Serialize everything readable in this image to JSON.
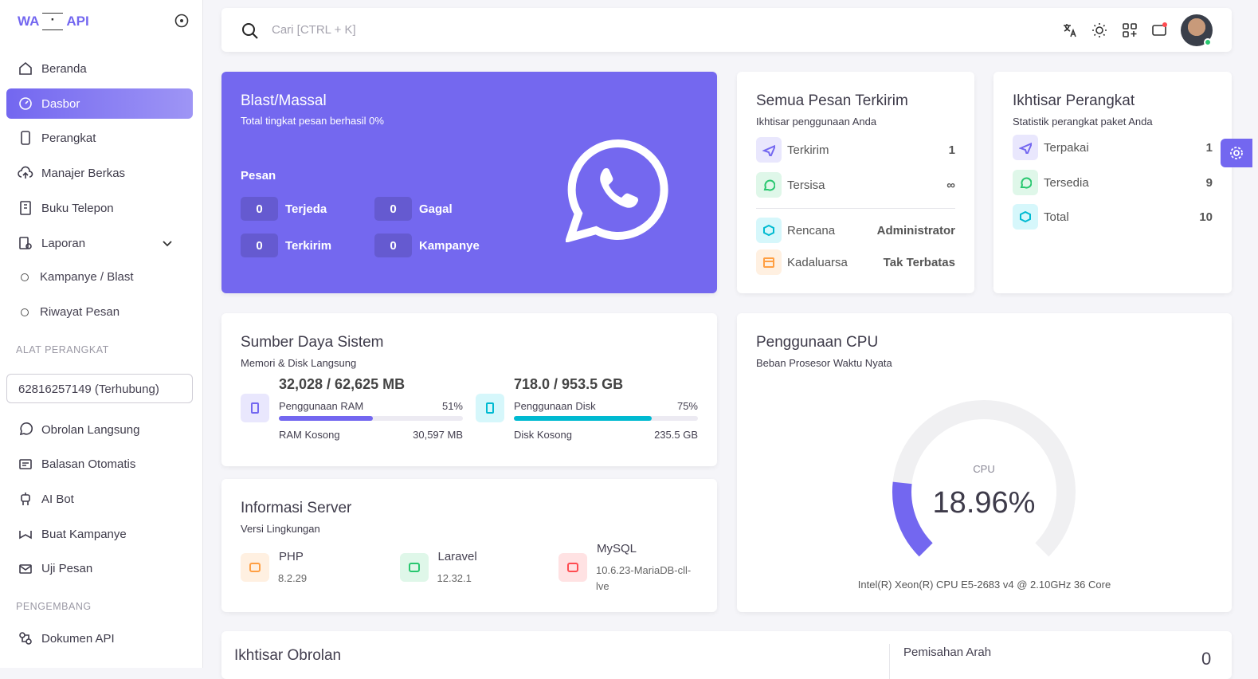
{
  "sidebar": {
    "logo_left": "WA",
    "logo_right": "API",
    "menu": [
      "Beranda",
      "Dasbor",
      "Perangkat",
      "Manajer Berkas",
      "Buku Telepon",
      "Laporan"
    ],
    "sub_menu": [
      "Kampanye / Blast",
      "Riwayat Pesan"
    ],
    "section_tools": "ALAT PERANGKAT",
    "device": "62816257149 (Terhubung)",
    "tools": [
      "Obrolan Langsung",
      "Balasan Otomatis",
      "AI Bot",
      "Buat Kampanye",
      "Uji Pesan"
    ],
    "section_dev": "PENGEMBANG",
    "dev": [
      "Dokumen API"
    ]
  },
  "topbar": {
    "search_placeholder": "Cari [CTRL + K]"
  },
  "blast": {
    "title": "Blast/Massal",
    "subtitle": "Total tingkat pesan berhasil 0%",
    "heading": "Pesan",
    "stats": [
      {
        "value": "0",
        "label": "Terjeda"
      },
      {
        "value": "0",
        "label": "Gagal"
      },
      {
        "value": "0",
        "label": "Terkirim"
      },
      {
        "value": "0",
        "label": "Kampanye"
      }
    ]
  },
  "messages": {
    "title": "Semua Pesan Terkirim",
    "subtitle": "Ikhtisar penggunaan Anda",
    "rows": [
      {
        "label": "Terkirim",
        "value": "1"
      },
      {
        "label": "Tersisa",
        "value": "∞"
      },
      {
        "label": "Rencana",
        "value": "Administrator"
      },
      {
        "label": "Kadaluarsa",
        "value": "Tak Terbatas"
      }
    ]
  },
  "devices": {
    "title": "Ikhtisar Perangkat",
    "subtitle": "Statistik perangkat paket Anda",
    "rows": [
      {
        "label": "Terpakai",
        "value": "1"
      },
      {
        "label": "Tersedia",
        "value": "9"
      },
      {
        "label": "Total",
        "value": "10"
      }
    ]
  },
  "resources": {
    "title": "Sumber Daya Sistem",
    "subtitle": "Memori & Disk Langsung",
    "ram": {
      "total": "32,028 / 62,625 MB",
      "label": "Penggunaan RAM",
      "percent": {
        "value": 51,
        "label": "51%"
      },
      "free_label": "RAM Kosong",
      "free": "30,597 MB"
    },
    "disk": {
      "total": "718.0 / 953.5 GB",
      "label": "Penggunaan Disk",
      "percent": {
        "value": 75,
        "label": "75%"
      },
      "free_label": "Disk Kosong",
      "free": "235.5 GB"
    }
  },
  "server": {
    "title": "Informasi Server",
    "subtitle": "Versi Lingkungan",
    "items": [
      {
        "name": "PHP",
        "version": "8.2.29"
      },
      {
        "name": "Laravel",
        "version": "12.32.1"
      },
      {
        "name": "MySQL",
        "version": "10.6.23-MariaDB-cll-lve"
      }
    ]
  },
  "cpu": {
    "title": "Penggunaan CPU",
    "subtitle": "Beban Prosesor Waktu Nyata",
    "gauge_label": "CPU",
    "usage": {
      "value": 18.96,
      "label": "18.96%"
    },
    "model": "Intel(R) Xeon(R) CPU E5-2683 v4 @ 2.10GHz 36 Core"
  },
  "chat": {
    "title": "Ikhtisar Obrolan",
    "direction_title": "Pemisahan Arah",
    "direction_value": "0"
  }
}
